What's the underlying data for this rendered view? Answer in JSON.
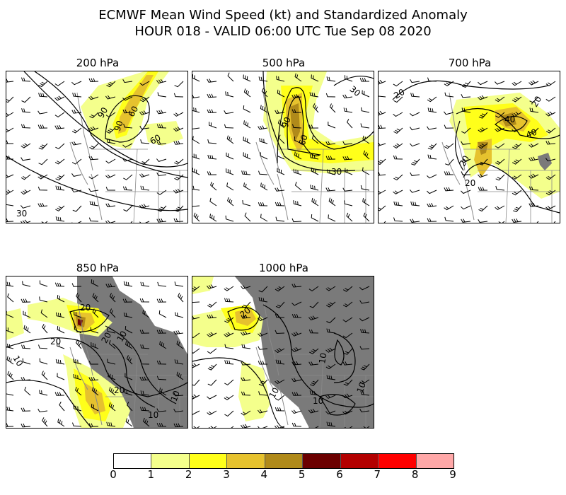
{
  "title": {
    "line1": "ECMWF Mean Wind Speed (kt) and Standardized Anomaly",
    "line2": "HOUR 018 - VALID 06:00 UTC Tue Sep 08 2020"
  },
  "panels": [
    {
      "label": "200 hPa",
      "contour_labels": [
        "90",
        "90",
        "60",
        "60",
        "30"
      ]
    },
    {
      "label": "500 hPa",
      "contour_labels": [
        "90",
        "60",
        "30",
        "30"
      ]
    },
    {
      "label": "700 hPa",
      "contour_labels": [
        "20",
        "20",
        "40",
        "40",
        "20",
        "20"
      ]
    },
    {
      "label": "850 hPa",
      "contour_labels": [
        "20",
        "20",
        "10",
        "20",
        "10",
        "20",
        "10",
        "10"
      ]
    },
    {
      "label": "1000 hPa",
      "contour_labels": [
        "20",
        "10",
        "10",
        "10",
        "10"
      ]
    }
  ],
  "colorbar": {
    "ticks": [
      "0",
      "1",
      "2",
      "3",
      "4",
      "5",
      "6",
      "7",
      "8",
      "9"
    ],
    "colors": [
      "#ffffff",
      "#f4ff8c",
      "#ffff1a",
      "#e6c22e",
      "#b08a1a",
      "#6b0000",
      "#b30000",
      "#ff0000",
      "#ffa8a8"
    ]
  },
  "colors": {
    "terrain_mask": "#7a7a7a",
    "borders": "#8a8a8a",
    "barbs": "#000000"
  }
}
